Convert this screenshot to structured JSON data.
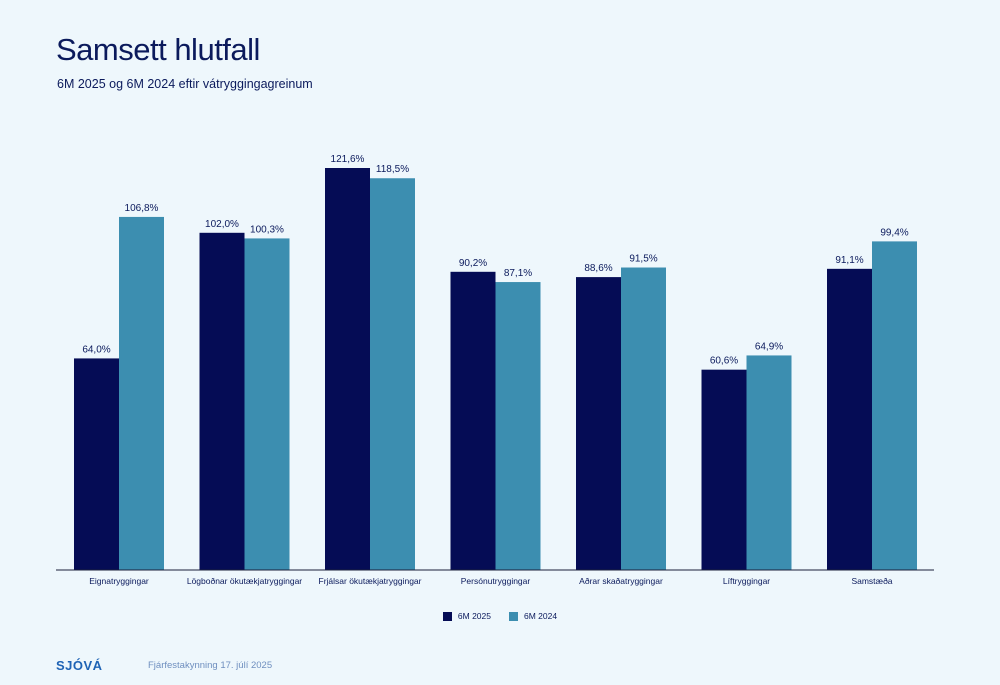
{
  "header": {
    "title": "Samsett hlutfall",
    "subtitle": "6M 2025 og 6M 2024 eftir vátryggingagreinum"
  },
  "legend": {
    "items": [
      {
        "label": "6M 2025",
        "color": "#050c55"
      },
      {
        "label": "6M 2024",
        "color": "#3c8eb0"
      }
    ]
  },
  "footer": {
    "logo": "SJÓVÁ",
    "text": "Fjárfestakynning 17. júlí 2025"
  },
  "chart_data": {
    "type": "bar",
    "categories": [
      "Eignatryggingar",
      "Lögboðnar ökutækjatryggingar",
      "Frjálsar ökutækjatryggingar",
      "Persónutryggingar",
      "Aðrar skaðatryggingar",
      "Líftryggingar",
      "Samstæða"
    ],
    "series": [
      {
        "name": "6M 2025",
        "color": "#050c55",
        "values": [
          64.0,
          102.0,
          121.6,
          90.2,
          88.6,
          60.6,
          91.1
        ],
        "labels": [
          "64,0%",
          "102,0%",
          "121,6%",
          "90,2%",
          "88,6%",
          "60,6%",
          "91,1%"
        ]
      },
      {
        "name": "6M 2024",
        "color": "#3c8eb0",
        "values": [
          106.8,
          100.3,
          118.5,
          87.1,
          91.5,
          64.9,
          99.4
        ],
        "labels": [
          "106,8%",
          "100,3%",
          "118,5%",
          "87,1%",
          "91,5%",
          "64,9%",
          "99,4%"
        ]
      }
    ],
    "ylim": [
      0,
      121.6
    ],
    "grid": false,
    "legend_position": "bottom-center"
  }
}
